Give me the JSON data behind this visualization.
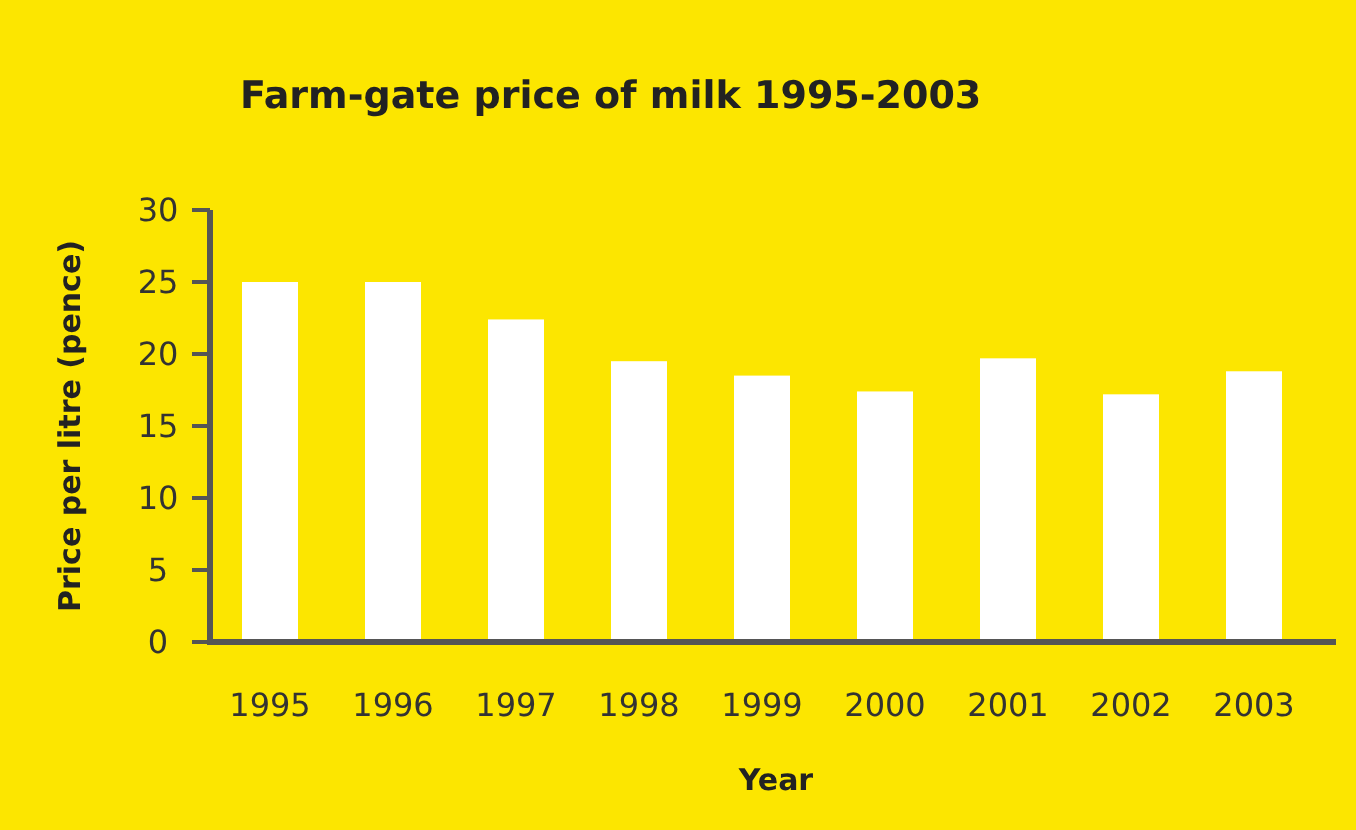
{
  "chart_data": {
    "type": "bar",
    "title": "Farm-gate price of milk 1995-2003",
    "xlabel": "Year",
    "ylabel": "Price per litre (pence)",
    "categories": [
      "1995",
      "1996",
      "1997",
      "1998",
      "1999",
      "2000",
      "2001",
      "2002",
      "2003"
    ],
    "values": [
      25,
      25,
      22.4,
      19.5,
      18.5,
      17.4,
      19.7,
      17.2,
      18.8
    ],
    "color": "#ffffff",
    "ylim": [
      0,
      30
    ],
    "yticks": [
      0,
      5,
      10,
      15,
      20,
      25,
      30
    ],
    "grid": false
  }
}
